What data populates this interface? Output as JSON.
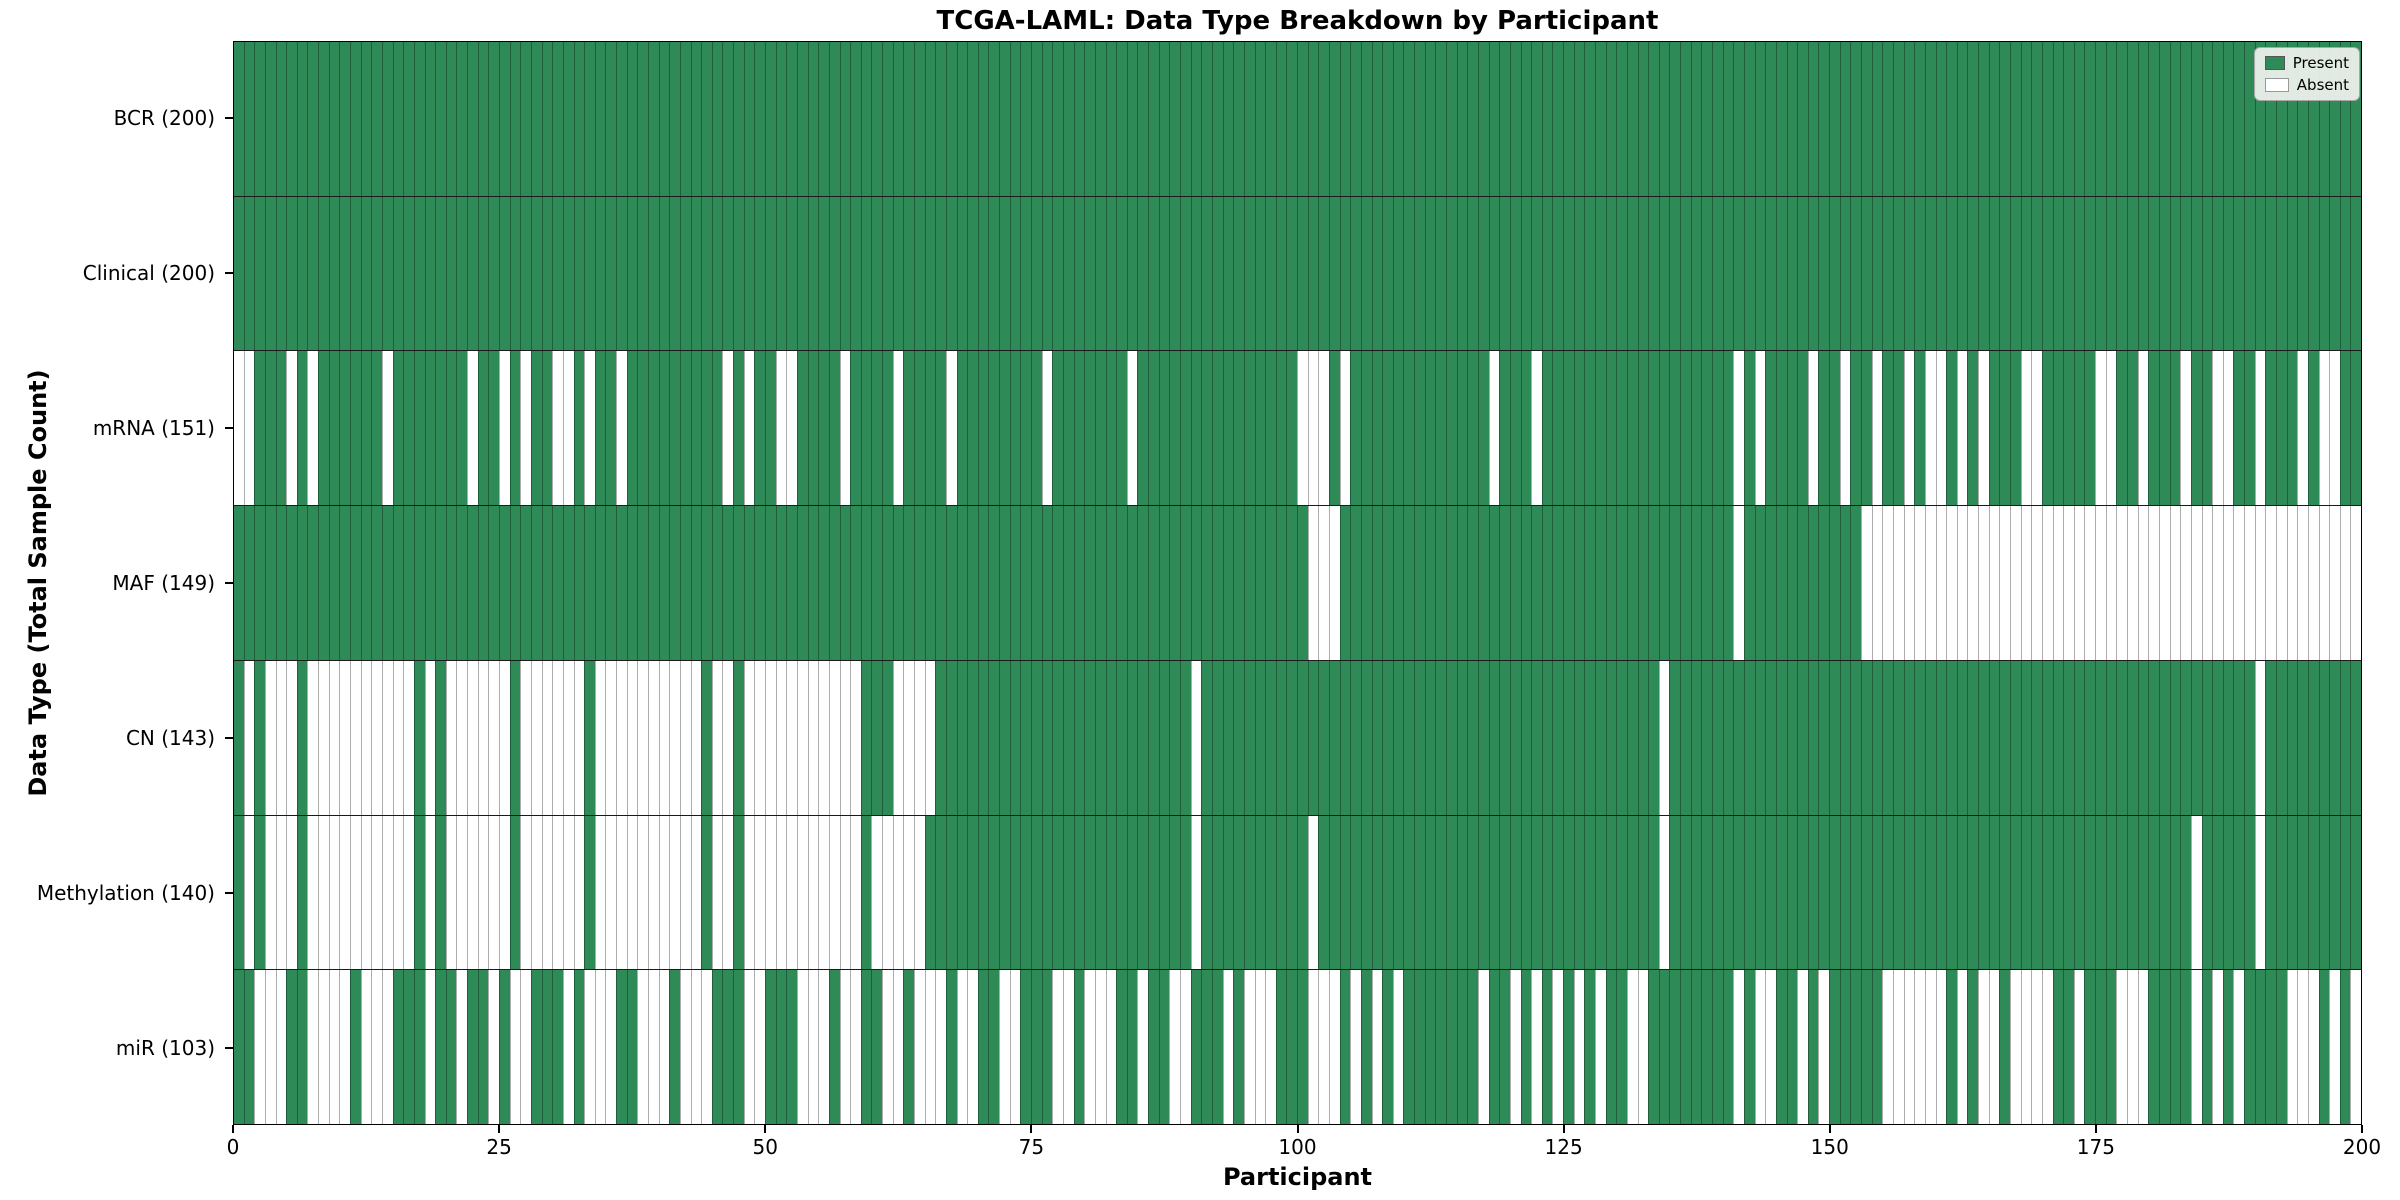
{
  "title": "TCGA-LAML: Data Type Breakdown by Participant",
  "xlabel": "Participant",
  "ylabel": "Data Type (Total Sample Count)",
  "legend": {
    "present_label": "Present",
    "absent_label": "Absent"
  },
  "colors": {
    "present": "#2e8b57",
    "absent": "#ffffff"
  },
  "chart_data": {
    "type": "heatmap",
    "title": "TCGA-LAML: Data Type Breakdown by Participant",
    "xlabel": "Participant",
    "ylabel": "Data Type (Total Sample Count)",
    "x_range": [
      0,
      200
    ],
    "n_participants": 200,
    "x_ticks": [
      0,
      25,
      50,
      75,
      100,
      125,
      150,
      175,
      200
    ],
    "legend_position": "upper right",
    "cell_states": [
      "present",
      "absent"
    ],
    "rows": [
      {
        "name": "BCR",
        "label": "BCR (200)",
        "present_count": 200,
        "absent_participants": []
      },
      {
        "name": "Clinical",
        "label": "Clinical (200)",
        "present_count": 200,
        "absent_participants": []
      },
      {
        "name": "mRNA",
        "label": "mRNA (151)",
        "present_count": 151,
        "absent_participants": [
          0,
          1,
          5,
          7,
          14,
          22,
          25,
          27,
          30,
          31,
          33,
          36,
          46,
          48,
          51,
          52,
          57,
          62,
          67,
          76,
          84,
          100,
          101,
          102,
          104,
          118,
          122,
          141,
          143,
          148,
          151,
          154,
          157,
          159,
          160,
          162,
          164,
          168,
          169,
          175,
          176,
          179,
          183,
          186,
          187,
          190,
          194,
          196,
          197
        ]
      },
      {
        "name": "MAF",
        "label": "MAF (149)",
        "present_count": 149,
        "absent_participants": [
          101,
          102,
          103,
          141,
          153,
          154,
          155,
          156,
          157,
          158,
          159,
          160,
          161,
          162,
          163,
          164,
          165,
          166,
          167,
          168,
          169,
          170,
          171,
          172,
          173,
          174,
          175,
          176,
          177,
          178,
          179,
          180,
          181,
          182,
          183,
          184,
          185,
          186,
          187,
          188,
          189,
          190,
          191,
          192,
          193,
          194,
          195,
          196,
          197,
          198,
          199
        ]
      },
      {
        "name": "CN",
        "label": "CN (143)",
        "present_count": 143,
        "absent_participants": [
          1,
          3,
          4,
          5,
          7,
          8,
          9,
          10,
          11,
          12,
          13,
          14,
          15,
          16,
          18,
          20,
          21,
          22,
          23,
          24,
          25,
          27,
          28,
          29,
          30,
          31,
          32,
          34,
          35,
          36,
          37,
          38,
          39,
          40,
          41,
          42,
          43,
          45,
          46,
          48,
          49,
          50,
          51,
          52,
          53,
          54,
          55,
          56,
          57,
          58,
          62,
          63,
          64,
          65,
          90,
          134,
          190
        ]
      },
      {
        "name": "Methylation",
        "label": "Methylation (140)",
        "present_count": 140,
        "absent_participants": [
          1,
          3,
          4,
          5,
          7,
          8,
          9,
          10,
          11,
          12,
          13,
          14,
          15,
          16,
          18,
          20,
          21,
          22,
          23,
          24,
          25,
          27,
          28,
          29,
          30,
          31,
          32,
          34,
          35,
          36,
          37,
          38,
          39,
          40,
          41,
          42,
          43,
          45,
          46,
          48,
          49,
          50,
          51,
          52,
          53,
          54,
          55,
          56,
          57,
          58,
          60,
          61,
          62,
          63,
          64,
          90,
          101,
          134,
          184,
          190
        ]
      },
      {
        "name": "miR",
        "label": "miR (103)",
        "present_count": 103,
        "absent_participants": [
          2,
          3,
          4,
          7,
          8,
          9,
          10,
          12,
          13,
          14,
          18,
          21,
          24,
          26,
          27,
          31,
          33,
          34,
          35,
          38,
          39,
          40,
          42,
          43,
          44,
          48,
          49,
          53,
          54,
          55,
          57,
          58,
          61,
          62,
          64,
          65,
          66,
          68,
          69,
          72,
          73,
          77,
          78,
          80,
          81,
          82,
          85,
          88,
          89,
          93,
          95,
          96,
          97,
          101,
          102,
          103,
          105,
          107,
          109,
          117,
          120,
          122,
          124,
          126,
          128,
          131,
          132,
          141,
          143,
          144,
          147,
          149,
          155,
          156,
          157,
          158,
          159,
          160,
          162,
          164,
          165,
          167,
          168,
          169,
          170,
          173,
          177,
          178,
          179,
          184,
          186,
          188,
          193,
          194,
          195,
          197,
          199
        ]
      }
    ]
  }
}
